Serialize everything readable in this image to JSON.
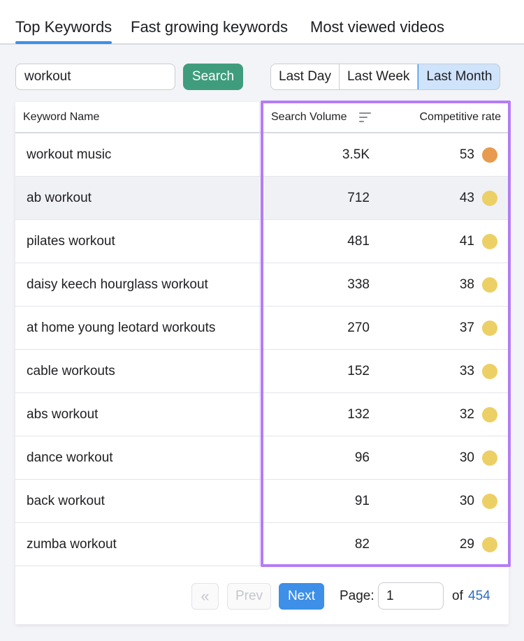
{
  "tabs": [
    {
      "label": "Top Keywords",
      "active": true
    },
    {
      "label": "Fast growing keywords",
      "active": false
    },
    {
      "label": "Most viewed videos",
      "active": false
    }
  ],
  "search": {
    "value": "workout",
    "button_label": "Search"
  },
  "periods": [
    {
      "label": "Last Day",
      "active": false
    },
    {
      "label": "Last Week",
      "active": false
    },
    {
      "label": "Last Month",
      "active": true
    }
  ],
  "table": {
    "headers": {
      "keyword": "Keyword Name",
      "volume": "Search Volume",
      "rate": "Competitive rate"
    },
    "rows": [
      {
        "keyword": "workout music",
        "volume": "3.5K",
        "rate": "53",
        "dot_color": "#e89a4e"
      },
      {
        "keyword": "ab workout",
        "volume": "712",
        "rate": "43",
        "dot_color": "#ecd066"
      },
      {
        "keyword": "pilates workout",
        "volume": "481",
        "rate": "41",
        "dot_color": "#ecd066"
      },
      {
        "keyword": "daisy keech hourglass workout",
        "volume": "338",
        "rate": "38",
        "dot_color": "#ecd066"
      },
      {
        "keyword": "at home young leotard workouts",
        "volume": "270",
        "rate": "37",
        "dot_color": "#ecd066"
      },
      {
        "keyword": "cable workouts",
        "volume": "152",
        "rate": "33",
        "dot_color": "#ecd066"
      },
      {
        "keyword": "abs workout",
        "volume": "132",
        "rate": "32",
        "dot_color": "#ecd066"
      },
      {
        "keyword": "dance workout",
        "volume": "96",
        "rate": "30",
        "dot_color": "#ecd066"
      },
      {
        "keyword": "back workout",
        "volume": "91",
        "rate": "30",
        "dot_color": "#ecd066"
      },
      {
        "keyword": "zumba workout",
        "volume": "82",
        "rate": "29",
        "dot_color": "#ecd066"
      }
    ]
  },
  "pager": {
    "first_label": "«",
    "prev_label": "Prev",
    "next_label": "Next",
    "page_label": "Page:",
    "page_value": "1",
    "of_label": "of",
    "total_pages": "454"
  },
  "colors": {
    "accent": "#3d8fe8",
    "search_button": "#3f9d7e",
    "highlight_outline": "#b57cf5"
  }
}
